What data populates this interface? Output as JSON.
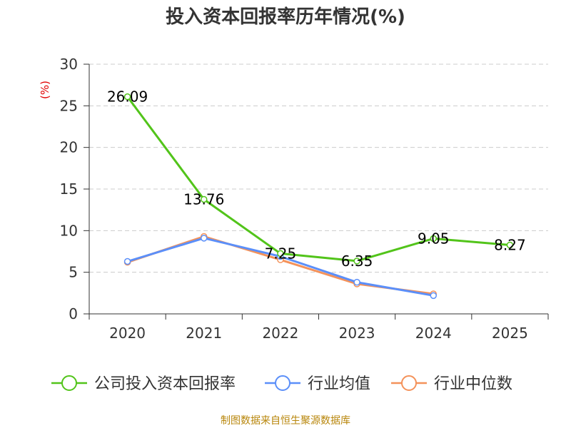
{
  "chart_data": {
    "type": "line",
    "title": "投入资本回报率历年情况(%)",
    "ylabel": "(%)",
    "xlabel": "",
    "categories": [
      "2020",
      "2021",
      "2022",
      "2023",
      "2024",
      "2025"
    ],
    "ylim": [
      0,
      30
    ],
    "yticks": [
      0,
      5,
      10,
      15,
      20,
      25,
      30
    ],
    "grid": true,
    "legend_position": "bottom",
    "series": [
      {
        "name": "公司投入资本回报率",
        "color": "#52c41a",
        "values": [
          26.09,
          13.76,
          7.25,
          6.35,
          9.05,
          8.27
        ],
        "labels": [
          "26.09",
          "13.76",
          "7.25",
          "6.35",
          "9.05",
          "8.27"
        ]
      },
      {
        "name": "行业均值",
        "color": "#5b8ff9",
        "values": [
          6.3,
          9.1,
          6.9,
          3.8,
          2.2,
          null
        ]
      },
      {
        "name": "行业中位数",
        "color": "#f4925a",
        "values": [
          6.2,
          9.3,
          6.5,
          3.6,
          2.4,
          null
        ]
      }
    ]
  },
  "source": "制图数据来自恒生聚源数据库"
}
